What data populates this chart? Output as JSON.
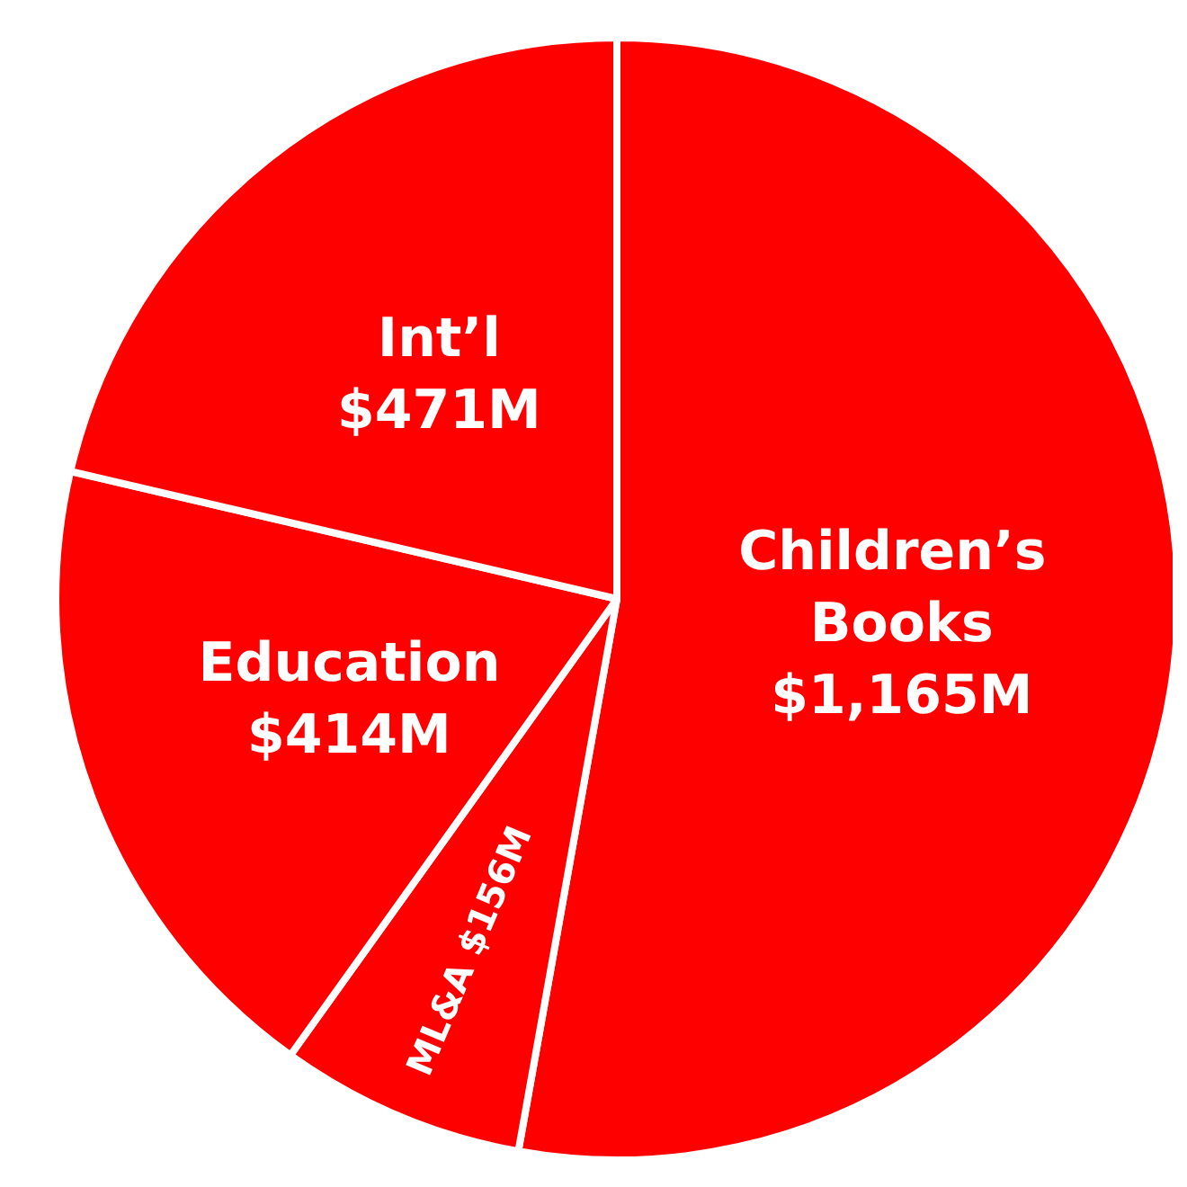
{
  "chart_data": {
    "type": "pie",
    "categories": [
      "Children’s Books",
      "ML&A",
      "Education",
      "Int’l"
    ],
    "values": [
      1165,
      156,
      414,
      471
    ],
    "value_labels": [
      "$1,165M",
      "$156M",
      "$414M",
      "$471M"
    ],
    "colors": [
      "#ff0000",
      "#ff0000",
      "#ff0000",
      "#ff0000"
    ],
    "legend": false
  }
}
